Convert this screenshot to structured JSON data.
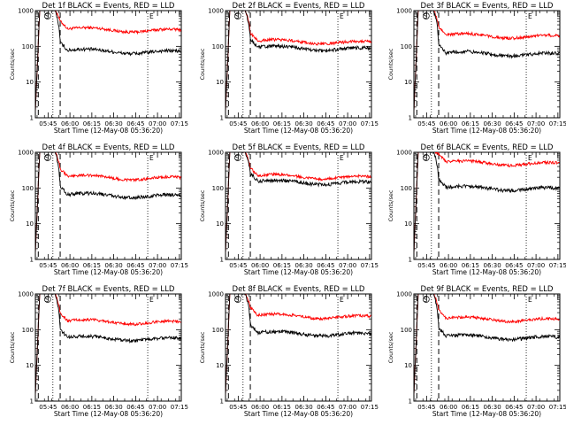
{
  "colors": {
    "events": "#000000",
    "lld": "#ff0000",
    "axes": "#000000",
    "background": "#ffffff"
  },
  "chart_data": [
    {
      "type": "line",
      "title": "Det 1f BLACK = Events, RED = LLD",
      "xlabel": "Start Time (12-May-08 05:36:20)",
      "ylabel": "Counts/sec",
      "y_scale": "log",
      "ylim": [
        1,
        1000
      ],
      "yticks": [
        "1",
        "10",
        "100",
        "1000"
      ],
      "xticks": [
        "05:45",
        "06:00",
        "06:15",
        "06:30",
        "06:45",
        "07:00",
        "07:15"
      ],
      "xtick_minutes": [
        8.7,
        23.7,
        38.7,
        53.7,
        68.7,
        83.7,
        98.7
      ],
      "xlim_minutes": [
        0,
        100
      ],
      "dashed_markers_minutes": [
        2,
        17
      ],
      "dotted_markers_minutes": [
        12,
        77
      ],
      "annotations": [
        "S",
        "E"
      ],
      "events_baseline": 70,
      "lld_baseline": 280,
      "grid": false,
      "series": [
        {
          "name": "Events",
          "color": "#000000"
        },
        {
          "name": "LLD",
          "color": "#ff0000"
        }
      ]
    },
    {
      "type": "line",
      "title": "Det 2f BLACK = Events, RED = LLD",
      "xlabel": "Start Time (12-May-08 05:36:20)",
      "ylabel": "Counts/sec",
      "y_scale": "log",
      "ylim": [
        1,
        1000
      ],
      "yticks": [
        "1",
        "10",
        "100",
        "1000"
      ],
      "xticks": [
        "05:45",
        "06:00",
        "06:15",
        "06:30",
        "06:45",
        "07:00",
        "07:15"
      ],
      "xtick_minutes": [
        8.7,
        23.7,
        38.7,
        53.7,
        68.7,
        83.7,
        98.7
      ],
      "xlim_minutes": [
        0,
        100
      ],
      "dashed_markers_minutes": [
        2,
        17
      ],
      "dotted_markers_minutes": [
        12,
        77
      ],
      "annotations": [
        "S",
        "E"
      ],
      "events_baseline": 85,
      "lld_baseline": 130,
      "grid": false,
      "series": [
        {
          "name": "Events",
          "color": "#000000"
        },
        {
          "name": "LLD",
          "color": "#ff0000"
        }
      ]
    },
    {
      "type": "line",
      "title": "Det 3f BLACK = Events, RED = LLD",
      "xlabel": "Start Time (12-May-08 05:36:20)",
      "ylabel": "Counts/sec",
      "y_scale": "log",
      "ylim": [
        1,
        1000
      ],
      "yticks": [
        "1",
        "10",
        "100",
        "1000"
      ],
      "xticks": [
        "05:45",
        "06:00",
        "06:15",
        "06:30",
        "06:45",
        "07:00",
        "07:15"
      ],
      "xtick_minutes": [
        8.7,
        23.7,
        38.7,
        53.7,
        68.7,
        83.7,
        98.7
      ],
      "xlim_minutes": [
        0,
        100
      ],
      "dashed_markers_minutes": [
        2,
        17
      ],
      "dotted_markers_minutes": [
        12,
        77
      ],
      "annotations": [
        "S",
        "E"
      ],
      "events_baseline": 60,
      "lld_baseline": 190,
      "grid": false,
      "series": [
        {
          "name": "Events",
          "color": "#000000"
        },
        {
          "name": "LLD",
          "color": "#ff0000"
        }
      ]
    },
    {
      "type": "line",
      "title": "Det 4f BLACK = Events, RED = LLD",
      "xlabel": "Start Time (12-May-08 05:36:20)",
      "ylabel": "Counts/sec",
      "y_scale": "log",
      "ylim": [
        1,
        1000
      ],
      "yticks": [
        "1",
        "10",
        "100",
        "1000"
      ],
      "xticks": [
        "05:45",
        "06:00",
        "06:15",
        "06:30",
        "06:45",
        "07:00",
        "07:15"
      ],
      "xtick_minutes": [
        8.7,
        23.7,
        38.7,
        53.7,
        68.7,
        83.7,
        98.7
      ],
      "xlim_minutes": [
        0,
        100
      ],
      "dashed_markers_minutes": [
        2,
        17
      ],
      "dotted_markers_minutes": [
        12,
        77
      ],
      "annotations": [
        "S",
        "E"
      ],
      "events_baseline": 60,
      "lld_baseline": 190,
      "grid": false,
      "series": [
        {
          "name": "Events",
          "color": "#000000"
        },
        {
          "name": "LLD",
          "color": "#ff0000"
        }
      ]
    },
    {
      "type": "line",
      "title": "Det 5f BLACK = Events, RED = LLD",
      "xlabel": "Start Time (12-May-08 05:36:20)",
      "ylabel": "Counts/sec",
      "y_scale": "log",
      "ylim": [
        1,
        1000
      ],
      "yticks": [
        "1",
        "10",
        "100",
        "1000"
      ],
      "xticks": [
        "05:45",
        "06:00",
        "06:15",
        "06:30",
        "06:45",
        "07:00",
        "07:15"
      ],
      "xtick_minutes": [
        8.7,
        23.7,
        38.7,
        53.7,
        68.7,
        83.7,
        98.7
      ],
      "xlim_minutes": [
        0,
        100
      ],
      "dashed_markers_minutes": [
        2,
        17
      ],
      "dotted_markers_minutes": [
        12,
        77
      ],
      "annotations": [
        "S",
        "E"
      ],
      "events_baseline": 140,
      "lld_baseline": 200,
      "grid": false,
      "series": [
        {
          "name": "Events",
          "color": "#000000"
        },
        {
          "name": "LLD",
          "color": "#ff0000"
        }
      ]
    },
    {
      "type": "line",
      "title": "Det 6f BLACK = Events, RED = LLD",
      "xlabel": "Start Time (12-May-08 05:36:20)",
      "ylabel": "Counts/sec",
      "y_scale": "log",
      "ylim": [
        1,
        1000
      ],
      "yticks": [
        "1",
        "10",
        "100",
        "1000"
      ],
      "xticks": [
        "05:45",
        "06:00",
        "06:15",
        "06:30",
        "06:45",
        "07:00",
        "07:15"
      ],
      "xtick_minutes": [
        8.7,
        23.7,
        38.7,
        53.7,
        68.7,
        83.7,
        98.7
      ],
      "xlim_minutes": [
        0,
        100
      ],
      "dashed_markers_minutes": [
        2,
        17
      ],
      "dotted_markers_minutes": [
        12,
        77
      ],
      "annotations": [
        "S",
        "E"
      ],
      "events_baseline": 95,
      "lld_baseline": 480,
      "grid": false,
      "series": [
        {
          "name": "Events",
          "color": "#000000"
        },
        {
          "name": "LLD",
          "color": "#ff0000"
        }
      ]
    },
    {
      "type": "line",
      "title": "Det 7f BLACK = Events, RED = LLD",
      "xlabel": "Start Time (12-May-08 05:36:20)",
      "ylabel": "Counts/sec",
      "y_scale": "log",
      "ylim": [
        1,
        1000
      ],
      "yticks": [
        "1",
        "10",
        "100",
        "1000"
      ],
      "xticks": [
        "05:45",
        "06:00",
        "06:15",
        "06:30",
        "06:45",
        "07:00",
        "07:15"
      ],
      "xtick_minutes": [
        8.7,
        23.7,
        38.7,
        53.7,
        68.7,
        83.7,
        98.7
      ],
      "xlim_minutes": [
        0,
        100
      ],
      "dashed_markers_minutes": [
        2,
        17
      ],
      "dotted_markers_minutes": [
        12,
        77
      ],
      "annotations": [
        "S",
        "E"
      ],
      "events_baseline": 55,
      "lld_baseline": 160,
      "grid": false,
      "series": [
        {
          "name": "Events",
          "color": "#000000"
        },
        {
          "name": "LLD",
          "color": "#ff0000"
        }
      ]
    },
    {
      "type": "line",
      "title": "Det 8f BLACK = Events, RED = LLD",
      "xlabel": "Start Time (12-May-08 05:36:20)",
      "ylabel": "Counts/sec",
      "y_scale": "log",
      "ylim": [
        1,
        1000
      ],
      "yticks": [
        "1",
        "10",
        "100",
        "1000"
      ],
      "xticks": [
        "05:45",
        "06:00",
        "06:15",
        "06:30",
        "06:45",
        "07:00",
        "07:15"
      ],
      "xtick_minutes": [
        8.7,
        23.7,
        38.7,
        53.7,
        68.7,
        83.7,
        98.7
      ],
      "xlim_minutes": [
        0,
        100
      ],
      "dashed_markers_minutes": [
        2,
        17
      ],
      "dotted_markers_minutes": [
        12,
        77
      ],
      "annotations": [
        "S",
        "E"
      ],
      "events_baseline": 75,
      "lld_baseline": 230,
      "grid": false,
      "series": [
        {
          "name": "Events",
          "color": "#000000"
        },
        {
          "name": "LLD",
          "color": "#ff0000"
        }
      ]
    },
    {
      "type": "line",
      "title": "Det 9f BLACK = Events, RED = LLD",
      "xlabel": "Start Time (12-May-08 05:36:20)",
      "ylabel": "Counts/sec",
      "y_scale": "log",
      "ylim": [
        1,
        1000
      ],
      "yticks": [
        "1",
        "10",
        "100",
        "1000"
      ],
      "xticks": [
        "05:45",
        "06:00",
        "06:15",
        "06:30",
        "06:45",
        "07:00",
        "07:15"
      ],
      "xtick_minutes": [
        8.7,
        23.7,
        38.7,
        53.7,
        68.7,
        83.7,
        98.7
      ],
      "xlim_minutes": [
        0,
        100
      ],
      "dashed_markers_minutes": [
        2,
        17
      ],
      "dotted_markers_minutes": [
        12,
        77
      ],
      "annotations": [
        "S",
        "E"
      ],
      "events_baseline": 60,
      "lld_baseline": 190,
      "grid": false,
      "series": [
        {
          "name": "Events",
          "color": "#000000"
        },
        {
          "name": "LLD",
          "color": "#ff0000"
        }
      ]
    }
  ]
}
